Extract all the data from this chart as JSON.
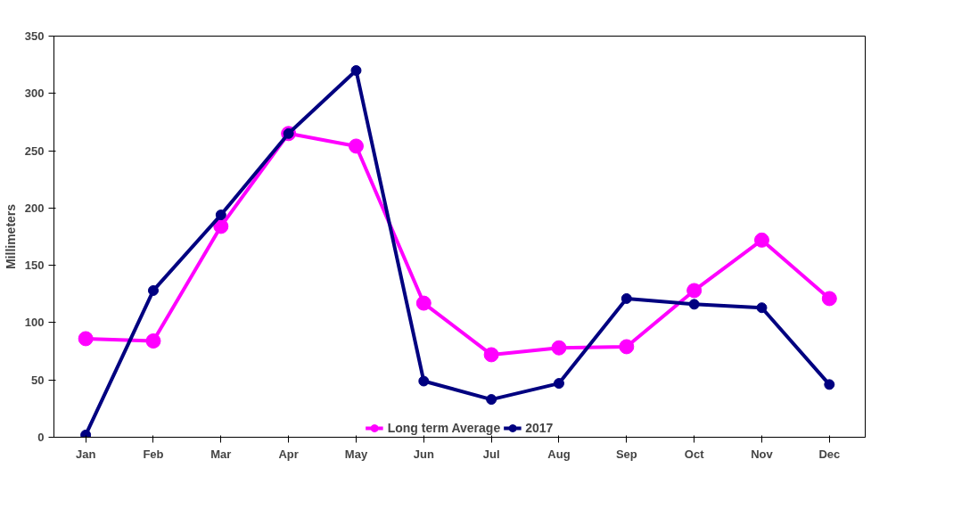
{
  "chart_data": {
    "type": "line",
    "ylabel": "Millimeters",
    "categories": [
      "Jan",
      "Feb",
      "Mar",
      "Apr",
      "May",
      "Jun",
      "Jul",
      "Aug",
      "Sep",
      "Oct",
      "Nov",
      "Dec"
    ],
    "series": [
      {
        "name": "Long term Average",
        "color": "#ff00ff",
        "values": [
          86,
          84,
          184,
          265,
          254,
          117,
          72,
          78,
          79,
          128,
          172,
          121
        ]
      },
      {
        "name": "2017",
        "color": "#000080",
        "values": [
          2,
          128,
          194,
          265,
          320,
          49,
          33,
          47,
          121,
          116,
          113,
          46
        ]
      }
    ],
    "ylim": [
      0,
      350
    ],
    "yticks": [
      0,
      50,
      100,
      150,
      200,
      250,
      300,
      350
    ],
    "grid": false,
    "legend": "bottom",
    "marker": "circle",
    "line_style": "solid"
  }
}
